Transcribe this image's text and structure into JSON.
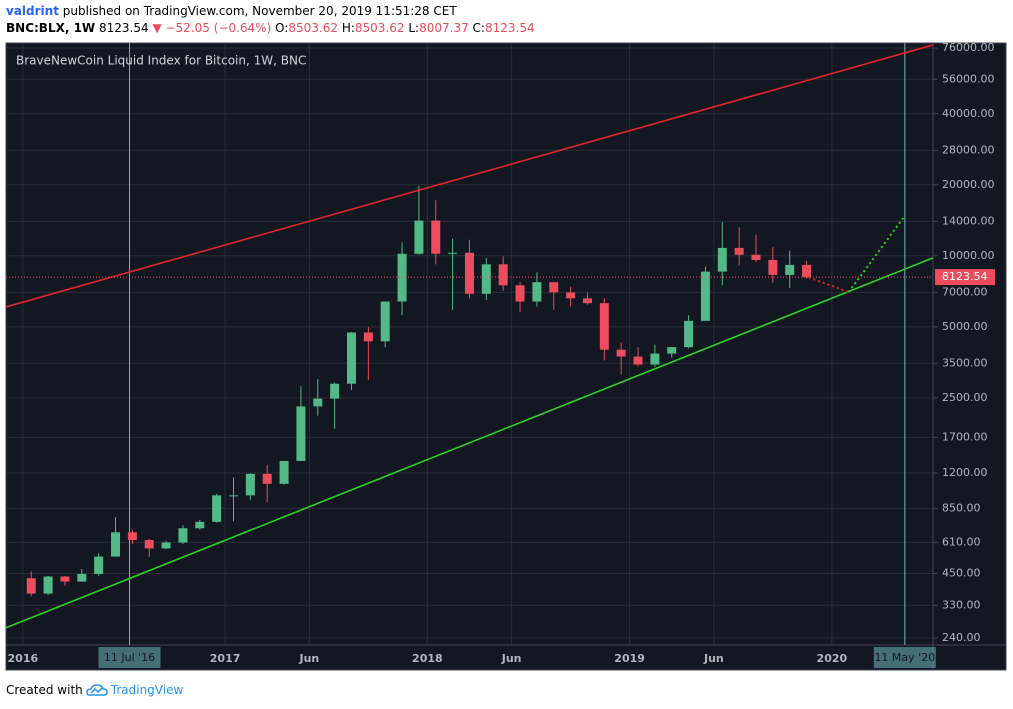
{
  "header": {
    "author": "valdrint",
    "published": "published on TradingView.com, November 20, 2019 11:51:28 CET",
    "symbol": "BNC:BLX, 1W",
    "price": "8123.54",
    "change": "▼ −52.05 (−0.64%)",
    "ohlc": [
      {
        "label": "O:",
        "value": "8503.62"
      },
      {
        "label": "H:",
        "value": "8503.62"
      },
      {
        "label": "L:",
        "value": "8007.37"
      },
      {
        "label": "C:",
        "value": "8123.54"
      }
    ]
  },
  "footer": {
    "text": "Created with",
    "brand": "TradingView"
  },
  "chart_data": {
    "type": "candlestick",
    "title": "BraveNewCoin Liquid Index for Bitcoin, 1W, BNC",
    "log_scale": true,
    "grid": true,
    "up_color": "#53b987",
    "down_color": "#eb4d5c",
    "xlim": [
      "2015-12",
      "2020-07"
    ],
    "ylim": [
      224,
      79800
    ],
    "xticks": [
      {
        "value": "2016-01",
        "label": "2016"
      },
      {
        "value": "2017-01",
        "label": "2017"
      },
      {
        "value": "2017-06",
        "label": "Jun"
      },
      {
        "value": "2018-01",
        "label": "2018"
      },
      {
        "value": "2018-06",
        "label": "Jun"
      },
      {
        "value": "2019-01",
        "label": "2019"
      },
      {
        "value": "2019-06",
        "label": "Jun"
      },
      {
        "value": "2020-01",
        "label": "2020"
      }
    ],
    "yticks": [
      {
        "value": 76000,
        "label": "76000.00"
      },
      {
        "value": 56000,
        "label": "56000.00"
      },
      {
        "value": 40000,
        "label": "40000.00"
      },
      {
        "value": 28000,
        "label": "28000.00"
      },
      {
        "value": 20000,
        "label": "20000.00"
      },
      {
        "value": 14000,
        "label": "14000.00"
      },
      {
        "value": 10000,
        "label": "10000.00"
      },
      {
        "value": 7000,
        "label": "7000.00"
      },
      {
        "value": 5000,
        "label": "5000.00"
      },
      {
        "value": 3500,
        "label": "3500.00"
      },
      {
        "value": 2500,
        "label": "2500.00"
      },
      {
        "value": 1700,
        "label": "1700.00"
      },
      {
        "value": 1200,
        "label": "1200.00"
      },
      {
        "value": 850,
        "label": "850.00"
      },
      {
        "value": 610,
        "label": "610.00"
      },
      {
        "value": 450,
        "label": "450.00"
      },
      {
        "value": 330,
        "label": "330.00"
      },
      {
        "value": 240,
        "label": "240.00"
      }
    ],
    "x": [
      "2016-01",
      "2016-02",
      "2016-03",
      "2016-04",
      "2016-05",
      "2016-06",
      "2016-07",
      "2016-08",
      "2016-09",
      "2016-10",
      "2016-11",
      "2016-12",
      "2017-01",
      "2017-02",
      "2017-03",
      "2017-04",
      "2017-05",
      "2017-06",
      "2017-07",
      "2017-08",
      "2017-09",
      "2017-10",
      "2017-11",
      "2017-12",
      "2018-01",
      "2018-02",
      "2018-03",
      "2018-04",
      "2018-05",
      "2018-06",
      "2018-07",
      "2018-08",
      "2018-09",
      "2018-10",
      "2018-11",
      "2018-12",
      "2019-01",
      "2019-02",
      "2019-03",
      "2019-04",
      "2019-05",
      "2019-06",
      "2019-07",
      "2019-08",
      "2019-09",
      "2019-10",
      "2019-11"
    ],
    "open": [
      430,
      370,
      437,
      416,
      448,
      531,
      673,
      624,
      575,
      609,
      700,
      745,
      965,
      965,
      1190,
      1080,
      1350,
      2300,
      2480,
      2870,
      4730,
      4340,
      6400,
      10200,
      14100,
      10200,
      10300,
      6900,
      9200,
      7500,
      6400,
      7730,
      7000,
      6600,
      6300,
      4000,
      3740,
      3460,
      3850,
      4100,
      5300,
      8570,
      10800,
      10100,
      9600,
      8300,
      9150
    ],
    "high": [
      460,
      440,
      440,
      470,
      550,
      780,
      690,
      630,
      620,
      720,
      760,
      980,
      1150,
      1200,
      1300,
      1350,
      2800,
      3000,
      2900,
      4750,
      5000,
      6400,
      11400,
      19800,
      17200,
      11800,
      11700,
      9800,
      9950,
      7750,
      8500,
      7750,
      7400,
      7000,
      6600,
      4300,
      4100,
      4200,
      4100,
      5600,
      9000,
      13900,
      13200,
      12300,
      10900,
      10500,
      9500
    ],
    "low": [
      360,
      365,
      400,
      415,
      440,
      530,
      600,
      530,
      570,
      600,
      690,
      740,
      750,
      920,
      900,
      1070,
      1350,
      2100,
      1850,
      2700,
      2980,
      4100,
      5600,
      10100,
      9200,
      5900,
      6600,
      6500,
      7100,
      5780,
      6100,
      5900,
      6100,
      6200,
      3600,
      3150,
      3400,
      3380,
      3700,
      4050,
      5300,
      7500,
      9100,
      9400,
      7700,
      7300,
      8007.37
    ],
    "close": [
      370,
      437,
      416,
      448,
      531,
      673,
      624,
      575,
      609,
      700,
      745,
      965,
      965,
      1190,
      1080,
      1350,
      2300,
      2480,
      2870,
      4730,
      4340,
      6400,
      10200,
      14100,
      10200,
      10300,
      6900,
      9200,
      7500,
      6400,
      7730,
      7000,
      6600,
      6300,
      4000,
      3740,
      3460,
      3850,
      4100,
      5300,
      8570,
      10800,
      10100,
      9600,
      8300,
      9150,
      8123.54
    ],
    "last_price": 8123.54,
    "last_price_color": "#eb4d5c",
    "lines": [
      {
        "x": [
          "2015-12",
          "2020-07"
        ],
        "values": [
          6070,
          78300
        ],
        "color": "#e0262b",
        "style": "solid"
      },
      {
        "x": [
          "2015-12",
          "2020-07"
        ],
        "values": [
          265,
          9800
        ],
        "color": "#2fd12a",
        "style": "solid"
      },
      {
        "x": [
          "2019-11-20",
          "2020-02"
        ],
        "values": [
          8100,
          7020
        ],
        "color": "#e0262b",
        "style": "dotted"
      },
      {
        "x": [
          "2020-02",
          "2020-05-08"
        ],
        "values": [
          7020,
          14450
        ],
        "color": "#2fd12a",
        "style": "dotted"
      }
    ],
    "vertical_lines": [
      {
        "x": "2016-07-11",
        "label": "11 Jul '16"
      },
      {
        "x": "2020-05-11",
        "label": "11 May '20"
      }
    ],
    "vertical_line_color": "#6fb7be"
  }
}
